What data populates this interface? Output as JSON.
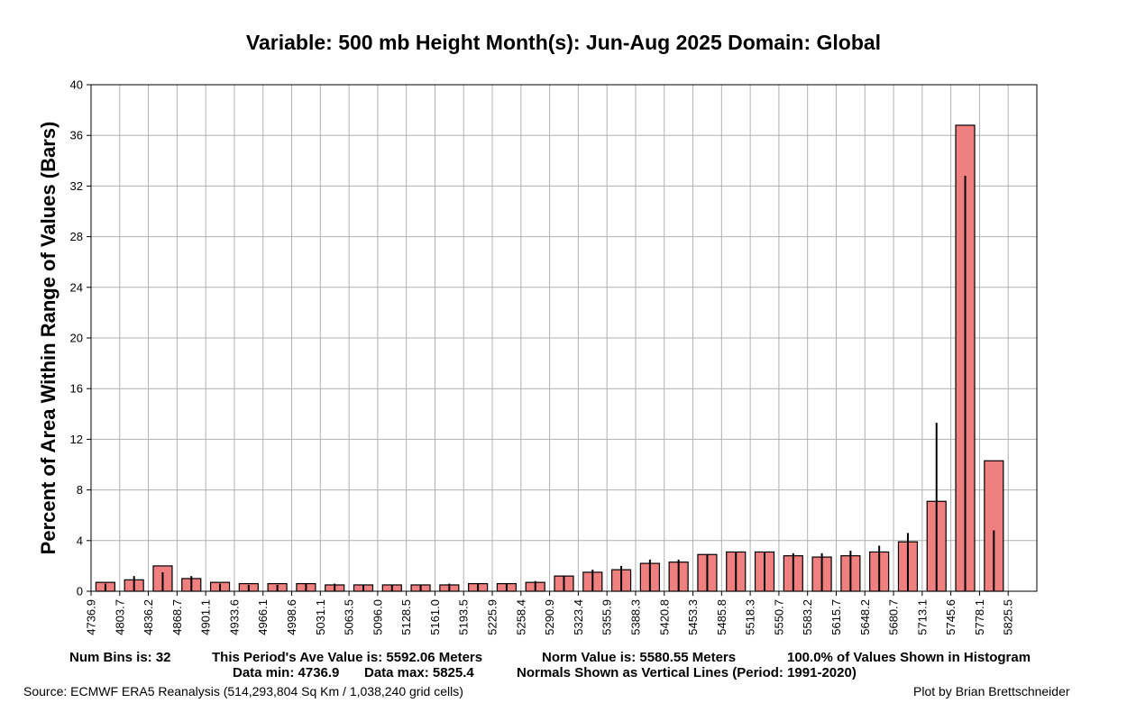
{
  "chart_data": {
    "type": "bar",
    "title": "Variable: 500 mb Height    Month(s): Jun-Aug 2025    Domain: Global",
    "ylabel": "Percent of Area Within Range of Values (Bars)",
    "xlabel": "",
    "ylim": [
      0,
      40
    ],
    "yticks": [
      "0",
      "4",
      "8",
      "12",
      "16",
      "20",
      "24",
      "28",
      "32",
      "36",
      "40"
    ],
    "bin_edges": [
      "4736.9",
      "4803.7",
      "4836.2",
      "4868.7",
      "4901.1",
      "4933.6",
      "4966.1",
      "4998.6",
      "5031.1",
      "5063.5",
      "5096.0",
      "5128.5",
      "5161.0",
      "5193.5",
      "5225.9",
      "5258.4",
      "5290.9",
      "5323.4",
      "5355.9",
      "5388.3",
      "5420.8",
      "5453.3",
      "5485.8",
      "5518.3",
      "5550.7",
      "5583.2",
      "5615.7",
      "5648.2",
      "5680.7",
      "5713.1",
      "5745.6",
      "5778.1",
      "5825.5"
    ],
    "grid": true,
    "legend": "none",
    "series": [
      {
        "name": "This Period",
        "values": [
          0.7,
          0.9,
          2.0,
          1.0,
          0.7,
          0.6,
          0.6,
          0.6,
          0.5,
          0.5,
          0.5,
          0.5,
          0.5,
          0.6,
          0.6,
          0.7,
          1.2,
          1.5,
          1.7,
          2.2,
          2.3,
          2.9,
          3.1,
          3.1,
          2.8,
          2.7,
          2.8,
          3.1,
          3.9,
          7.1,
          36.8,
          10.3
        ]
      },
      {
        "name": "Normals (1991-2020)",
        "values": [
          0.6,
          1.2,
          1.5,
          1.2,
          0.6,
          0.5,
          0.5,
          0.6,
          0.6,
          0.5,
          0.5,
          0.5,
          0.6,
          0.6,
          0.6,
          0.8,
          1.2,
          1.7,
          2.0,
          2.5,
          2.5,
          2.9,
          3.1,
          3.1,
          3.0,
          3.0,
          3.2,
          3.6,
          4.6,
          13.3,
          32.8,
          4.8
        ]
      }
    ],
    "colors": {
      "bar_fill": "#f08080",
      "bar_edge": "#000000",
      "normal_line": "#000000",
      "grid": "#b0b0b0"
    }
  },
  "footer": {
    "num_bins": "Num Bins is: 32",
    "ave_value": "This Period's Ave Value is: 5592.06 Meters",
    "norm_value": "Norm Value is: 5580.55 Meters",
    "pct_shown": "100.0% of Values Shown in Histogram",
    "data_min": "Data min: 4736.9",
    "data_max": "Data max: 5825.4",
    "normals_note": "Normals Shown as Vertical Lines (Period: 1991-2020)"
  },
  "source": "Source: ECMWF ERA5 Reanalysis (514,293,804 Sq Km / 1,038,240 grid cells)",
  "credit": "Plot by Brian Brettschneider"
}
